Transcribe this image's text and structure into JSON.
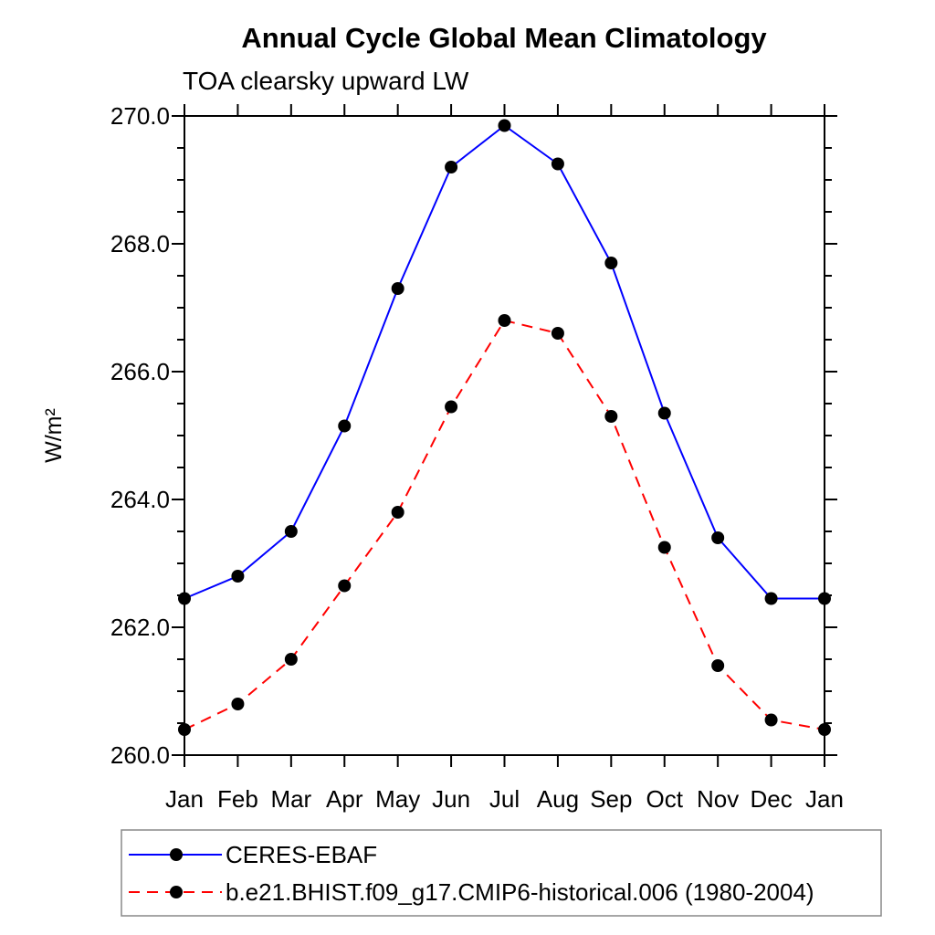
{
  "title": "Annual Cycle Global Mean Climatology",
  "subtitle": "TOA clearsky upward LW",
  "chart_data": {
    "type": "line",
    "title": "Annual Cycle Global Mean Climatology",
    "subtitle": "TOA clearsky upward LW",
    "xlabel": "",
    "ylabel": "W/m²",
    "ylim": [
      260.0,
      270.0
    ],
    "ytick_major_step": 2.0,
    "ytick_minor_step": 0.5,
    "ytick_labels": [
      "260.0",
      "262.0",
      "264.0",
      "266.0",
      "268.0",
      "270.0"
    ],
    "categories": [
      "Jan",
      "Feb",
      "Mar",
      "Apr",
      "May",
      "Jun",
      "Jul",
      "Aug",
      "Sep",
      "Oct",
      "Nov",
      "Dec",
      "Jan"
    ],
    "grid": false,
    "legend_position": "bottom-left-box",
    "series": [
      {
        "name": "CERES-EBAF",
        "line_color": "#0000ff",
        "line_style": "solid",
        "marker": "filled-circle",
        "marker_color": "#000000",
        "values": [
          262.45,
          262.8,
          263.5,
          265.15,
          267.3,
          269.2,
          269.85,
          269.25,
          267.7,
          265.35,
          263.4,
          262.45,
          262.45
        ]
      },
      {
        "name": "b.e21.BHIST.f09_g17.CMIP6-historical.006 (1980-2004)",
        "line_color": "#ff0000",
        "line_style": "dashed",
        "marker": "filled-circle",
        "marker_color": "#000000",
        "values": [
          260.4,
          260.8,
          261.5,
          262.65,
          263.8,
          265.45,
          266.8,
          266.6,
          265.3,
          263.25,
          261.4,
          260.55,
          260.4
        ]
      }
    ],
    "colors": {
      "axis": "#000000",
      "text": "#000000",
      "legend_border": "#888888",
      "background": "#ffffff"
    }
  }
}
